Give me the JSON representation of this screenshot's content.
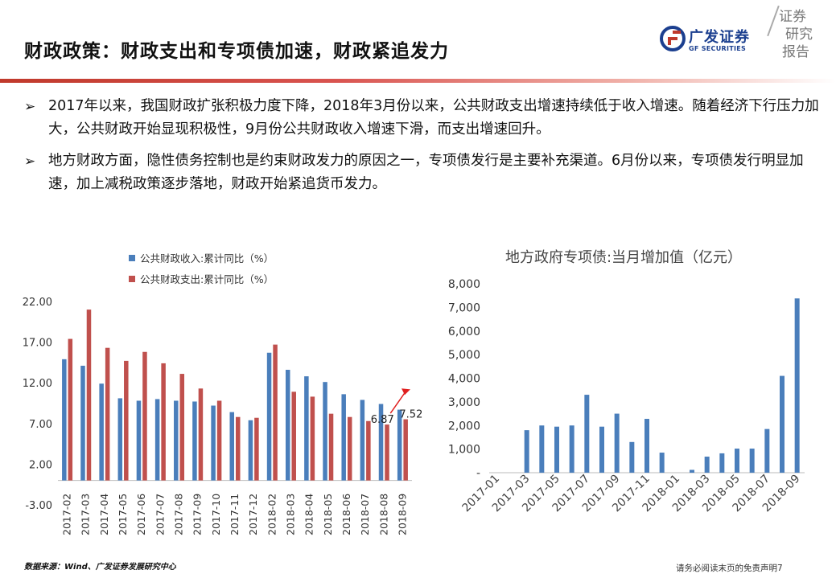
{
  "header": {
    "title": "财政政策：财政支出和专项债加速，财政紧追发力",
    "logo_cn": "广发证券",
    "logo_en": "GF SECURITIES",
    "research_lines": [
      "证券",
      "研究",
      "报告"
    ],
    "brand_color": "#1b3f8f",
    "accent_color": "#c0392b"
  },
  "bullets": [
    {
      "text": "2017年以来，我国财政扩张积极力度下降，2018年3月份以来，公共财政支出增速持续低于收入增速。随着经济下行压力加大，公共财政开始显现积极性，9月份公共财政收入增速下滑，而支出增速回升。"
    },
    {
      "text": "地方财政方面，隐性债务控制也是约束财政发力的原因之一，专项债发行是主要补充渠道。6月份以来，专项债发行明显加速，加上减税政策逐步落地，财政开始紧追货币发力。"
    }
  ],
  "chart_data": [
    {
      "type": "bar",
      "title": "",
      "xlabel": "",
      "ylabel": "",
      "categories": [
        "2017-02",
        "2017-03",
        "2017-04",
        "2017-05",
        "2017-06",
        "2017-07",
        "2017-08",
        "2017-09",
        "2017-10",
        "2017-11",
        "2017-12",
        "2018-02",
        "2018-03",
        "2018-04",
        "2018-05",
        "2018-06",
        "2018-07",
        "2018-08",
        "2018-09"
      ],
      "series": [
        {
          "name": "公共财政收入:累计同比（%）",
          "color": "#4a7ebb",
          "values": [
            14.9,
            14.1,
            11.9,
            10.1,
            9.8,
            10.0,
            9.8,
            9.7,
            9.2,
            8.4,
            7.4,
            15.7,
            13.6,
            12.8,
            12.1,
            10.6,
            9.9,
            9.4,
            8.7
          ]
        },
        {
          "name": "公共财政支出:累计同比（%）",
          "color": "#c0504d",
          "values": [
            17.4,
            21.0,
            16.3,
            14.7,
            15.8,
            14.4,
            13.1,
            11.3,
            9.8,
            7.8,
            7.7,
            16.7,
            10.9,
            10.3,
            8.2,
            7.8,
            7.3,
            6.87,
            7.52
          ]
        }
      ],
      "ylim": [
        -3.0,
        22.0
      ],
      "yticks": [
        "22.00",
        "17.00",
        "12.00",
        "7.00",
        "2.00",
        "-3.00"
      ],
      "annotations": [
        {
          "text": "6.87",
          "category": "2018-08",
          "series": 1
        },
        {
          "text": "7.52",
          "category": "2018-09",
          "series": 1
        }
      ],
      "arrow_color": "#e02020",
      "legend_position": "top-left"
    },
    {
      "type": "bar",
      "title": "地方政府专项债:当月增加值（亿元）",
      "xlabel": "",
      "ylabel": "",
      "categories": [
        "2017-01",
        "2017-02",
        "2017-03",
        "2017-04",
        "2017-05",
        "2017-06",
        "2017-07",
        "2017-08",
        "2017-09",
        "2017-10",
        "2017-11",
        "2017-12",
        "2018-01",
        "2018-02",
        "2018-03",
        "2018-04",
        "2018-05",
        "2018-06",
        "2018-07",
        "2018-08",
        "2018-09"
      ],
      "tick_labels": [
        "2017-01",
        "2017-03",
        "2017-05",
        "2017-07",
        "2017-09",
        "2017-11",
        "2018-01",
        "2018-03",
        "2018-05",
        "2018-07",
        "2018-09"
      ],
      "series": [
        {
          "name": "",
          "color": "#4a7ebb",
          "values": [
            0,
            0,
            1800,
            2000,
            1950,
            2000,
            3300,
            1950,
            2500,
            1300,
            2280,
            850,
            0,
            120,
            680,
            820,
            1020,
            1020,
            1850,
            4100,
            7380
          ]
        }
      ],
      "ylim": [
        0,
        8000
      ],
      "yticks": [
        "8,000",
        "7,000",
        "6,000",
        "5,000",
        "4,000",
        "3,000",
        "2,000",
        "1,000",
        "-"
      ],
      "legend_position": "none"
    }
  ],
  "footer": {
    "source": "数据来源：Wind、广发证券发展研究中心",
    "disclaimer": "请务必阅读末页的免责声明7"
  }
}
